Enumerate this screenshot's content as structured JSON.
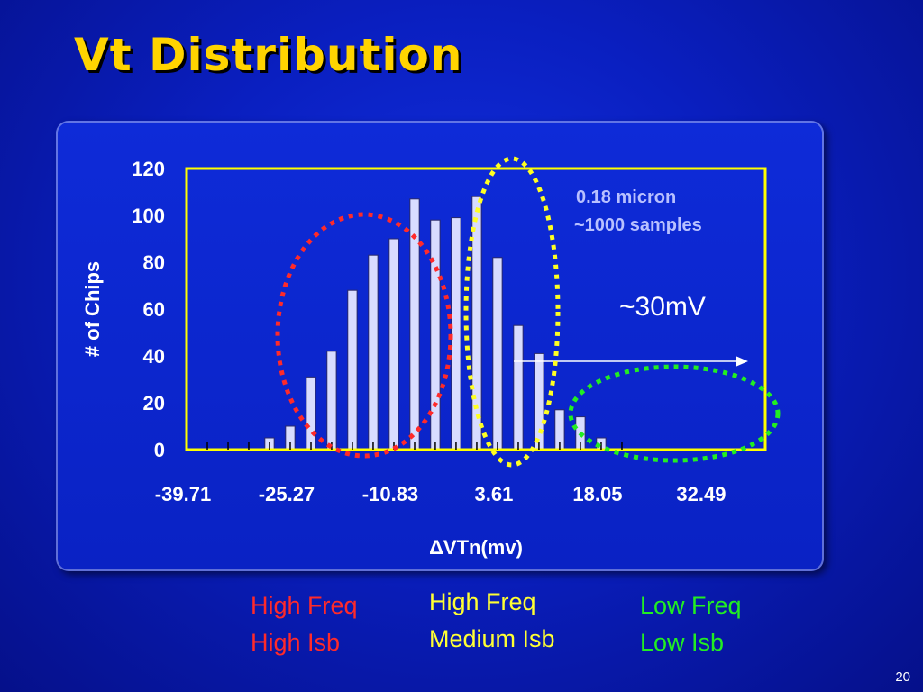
{
  "slide": {
    "title": "Vt Distribution",
    "page_number": "20"
  },
  "annotations": {
    "process_line1": "0.18 micron",
    "process_line2": "~1000 samples",
    "spread_label": "~30mV"
  },
  "captions": {
    "high": {
      "line1": "High Freq",
      "line2": "High Isb",
      "color": "#ff2a2a"
    },
    "medium": {
      "line1": "High Freq",
      "line2": "Medium Isb",
      "color": "#ffff33"
    },
    "low": {
      "line1": "Low Freq",
      "line2": "Low Isb",
      "color": "#22ee22"
    }
  },
  "colors": {
    "bar_fill": "#d8dcff",
    "plot_border": "#ffff00",
    "axis_text": "#ffffff",
    "annotation_text": "#b8c0ff"
  },
  "chart_data": {
    "type": "bar",
    "title": "",
    "xlabel": "ΔVTn(mv)",
    "ylabel": "# of Chips",
    "ylim": [
      0,
      120
    ],
    "y_ticks": [
      "0",
      "20",
      "40",
      "60",
      "80",
      "100",
      "120"
    ],
    "x_tick_labels": [
      "-39.71",
      "-25.27",
      "-10.83",
      "3.61",
      "18.05",
      "32.49"
    ],
    "x_range": [
      -39.71,
      40.91
    ],
    "bin_width": 2.888,
    "bins": [
      {
        "x": -36.82,
        "value": 0
      },
      {
        "x": -33.93,
        "value": 0
      },
      {
        "x": -31.05,
        "value": 0
      },
      {
        "x": -28.16,
        "value": 5
      },
      {
        "x": -25.27,
        "value": 10
      },
      {
        "x": -22.38,
        "value": 31
      },
      {
        "x": -19.5,
        "value": 42
      },
      {
        "x": -16.61,
        "value": 68
      },
      {
        "x": -13.72,
        "value": 83
      },
      {
        "x": -10.83,
        "value": 90
      },
      {
        "x": -7.94,
        "value": 107
      },
      {
        "x": -5.06,
        "value": 98
      },
      {
        "x": -2.17,
        "value": 99
      },
      {
        "x": 0.72,
        "value": 108
      },
      {
        "x": 3.61,
        "value": 82
      },
      {
        "x": 6.5,
        "value": 53
      },
      {
        "x": 9.38,
        "value": 41
      },
      {
        "x": 12.27,
        "value": 17
      },
      {
        "x": 15.16,
        "value": 14
      },
      {
        "x": 18.05,
        "value": 5
      },
      {
        "x": 20.94,
        "value": 0
      }
    ],
    "grid": false,
    "legend": "none"
  }
}
